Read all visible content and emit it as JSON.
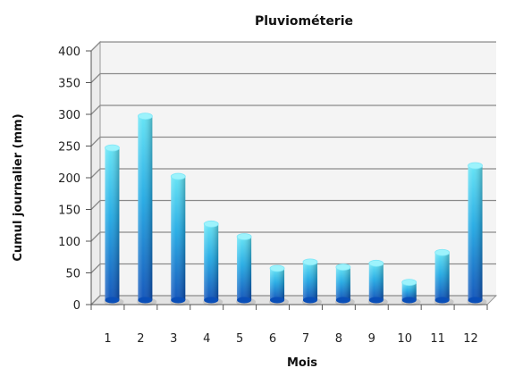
{
  "chart_data": {
    "type": "bar",
    "title": "Pluviométerie",
    "xlabel": "Mois",
    "ylabel": "Cumul journalier (mm)",
    "categories": [
      "1",
      "2",
      "3",
      "4",
      "5",
      "6",
      "7",
      "8",
      "9",
      "10",
      "11",
      "12"
    ],
    "values": [
      240,
      290,
      195,
      120,
      100,
      50,
      60,
      52,
      58,
      28,
      75,
      212
    ],
    "ylim": [
      0,
      400
    ],
    "yticks": [
      "0",
      "50",
      "100",
      "150",
      "200",
      "250",
      "300",
      "350",
      "400"
    ],
    "grid": true,
    "bar_style": "3d-cylinder",
    "colors": {
      "bar_top": "#5fe3f5",
      "bar_mid": "#1fa9e4",
      "bar_bottom": "#0a4fb8",
      "grid": "#8a8a8a",
      "floor": "#e3e3e3",
      "wall": "#f4f4f4"
    }
  }
}
